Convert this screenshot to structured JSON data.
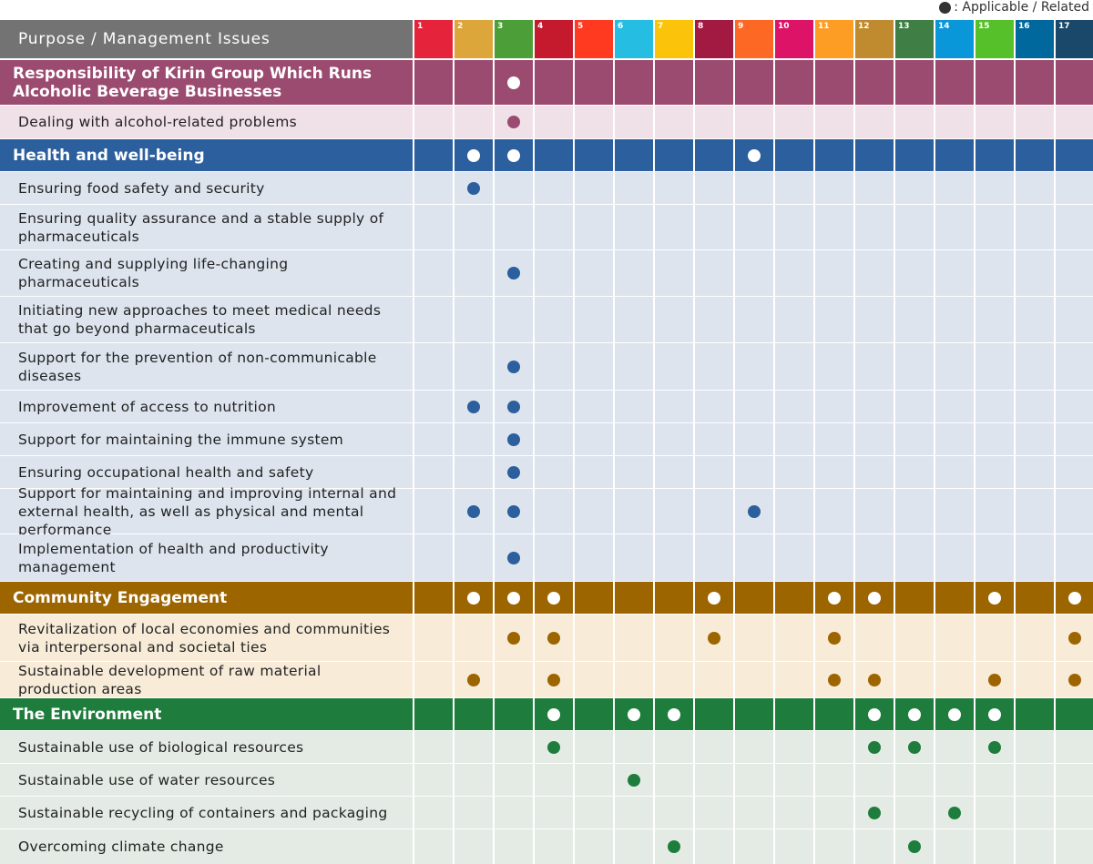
{
  "legend": ": Applicable / Related",
  "header": {
    "title": "Purpose  /  Management Issues",
    "color": "#737373"
  },
  "goals": [
    {
      "number": 1,
      "color": "#e5243b"
    },
    {
      "number": 2,
      "color": "#dda63a"
    },
    {
      "number": 3,
      "color": "#4c9f38"
    },
    {
      "number": 4,
      "color": "#c5192d"
    },
    {
      "number": 5,
      "color": "#ff3a21"
    },
    {
      "number": 6,
      "color": "#26bde2"
    },
    {
      "number": 7,
      "color": "#fcc30b"
    },
    {
      "number": 8,
      "color": "#a21942"
    },
    {
      "number": 9,
      "color": "#fd6925"
    },
    {
      "number": 10,
      "color": "#dd1367"
    },
    {
      "number": 11,
      "color": "#fd9d24"
    },
    {
      "number": 12,
      "color": "#bf8b2e"
    },
    {
      "number": 13,
      "color": "#3f7e44"
    },
    {
      "number": 14,
      "color": "#0a97d9"
    },
    {
      "number": 15,
      "color": "#56c02b"
    },
    {
      "number": 16,
      "color": "#00689d"
    },
    {
      "number": 17,
      "color": "#19486a"
    }
  ],
  "sections": [
    {
      "title": "Responsibility of Kirin Group Which Runs Alcoholic Beverage Businesses",
      "color": "#9b4a70",
      "row_color": "#f0e1e8",
      "goals": [
        3
      ],
      "items": [
        {
          "label": "Dealing with alcohol-related problems",
          "goals": [
            3
          ]
        }
      ]
    },
    {
      "title": "Health and well-being",
      "color": "#2c5f9e",
      "row_color": "#dde4ee",
      "goals": [
        2,
        3,
        9
      ],
      "items": [
        {
          "label": "Ensuring food safety and security",
          "goals": [
            2
          ]
        },
        {
          "label": "Ensuring quality assurance and a stable supply of pharmaceuticals",
          "goals": []
        },
        {
          "label": "Creating and supplying life-changing pharmaceuticals",
          "goals": [
            3
          ]
        },
        {
          "label": "Initiating new approaches to meet medical needs that go beyond pharmaceuticals",
          "goals": []
        },
        {
          "label": "Support for the prevention of non-communicable diseases",
          "goals": [
            3
          ]
        },
        {
          "label": "Improvement of access to nutrition",
          "goals": [
            2,
            3
          ]
        },
        {
          "label": "Support for maintaining the immune system",
          "goals": [
            3
          ]
        },
        {
          "label": "Ensuring occupational health and safety",
          "goals": [
            3
          ]
        },
        {
          "label": "Support for maintaining and improving internal and external health, as well as physical and mental performance",
          "goals": [
            2,
            3,
            9
          ]
        },
        {
          "label": "Implementation of health and productivity management",
          "goals": [
            3
          ]
        }
      ]
    },
    {
      "title": "Community Engagement",
      "color": "#9c6500",
      "row_color": "#f8ecd9",
      "goals": [
        2,
        3,
        4,
        8,
        11,
        12,
        15,
        17
      ],
      "items": [
        {
          "label": "Revitalization of local economies and communities via interpersonal and societal ties",
          "goals": [
            3,
            4,
            8,
            11,
            17
          ]
        },
        {
          "label": "Sustainable development of raw material production areas",
          "goals": [
            2,
            4,
            11,
            12,
            15,
            17
          ]
        }
      ]
    },
    {
      "title": "The Environment",
      "color": "#1e7d3c",
      "row_color": "#e3ebe4",
      "goals": [
        4,
        6,
        7,
        12,
        13,
        14,
        15
      ],
      "items": [
        {
          "label": "Sustainable use of biological resources",
          "goals": [
            4,
            12,
            13,
            15
          ]
        },
        {
          "label": "Sustainable use of water resources",
          "goals": [
            6
          ]
        },
        {
          "label": "Sustainable recycling of containers and packaging",
          "goals": [
            12,
            14
          ]
        },
        {
          "label": "Overcoming climate change",
          "goals": [
            7,
            13
          ]
        }
      ]
    }
  ]
}
